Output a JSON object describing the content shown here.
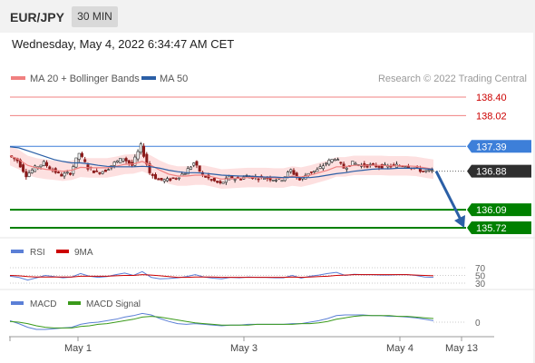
{
  "header": {
    "pair": "EUR/JPY",
    "timeframe": "30 MIN",
    "datetime": "Wednesday, May 4, 2022 6:34:47 AM CET"
  },
  "legend": {
    "ma20": "MA 20 + Bollinger Bands",
    "ma50": "MA 50",
    "copyright": "Research © 2022 Trading Central"
  },
  "colors": {
    "resistance": "#cc0000",
    "pivot": "#3d7fd9",
    "support": "#008000",
    "current": "#2f2f2f",
    "ma20": "#f08080",
    "ma50": "#2b5fa6",
    "bollinger_fill": "#fde0e0",
    "candle_up": "#2f2f2f",
    "candle_down": "#8a1a1a",
    "arrow": "#2b5fa6",
    "rsi": "#5b7fd6",
    "rsi_ma": "#cc0000",
    "macd": "#5b7fd6",
    "macd_signal": "#3a9a1a"
  },
  "chart_data": [
    {
      "type": "candlestick",
      "title": "EUR/JPY",
      "ylim": [
        135.6,
        138.55
      ],
      "levels": [
        {
          "label": "138.40",
          "value": 138.4,
          "kind": "resistance"
        },
        {
          "label": "138.02",
          "value": 138.02,
          "kind": "resistance"
        },
        {
          "label": "137.39",
          "value": 137.39,
          "kind": "pivot"
        },
        {
          "label": "136.88",
          "value": 136.88,
          "kind": "current"
        },
        {
          "label": "136.09",
          "value": 136.09,
          "kind": "support"
        },
        {
          "label": "135.72",
          "value": 135.72,
          "kind": "support"
        }
      ],
      "close_profile": [
        137.2,
        137.1,
        136.8,
        136.95,
        137.05,
        136.9,
        136.8,
        136.85,
        137.25,
        136.95,
        136.85,
        136.9,
        137.05,
        137.15,
        137.0,
        137.4,
        136.85,
        136.7,
        136.7,
        136.75,
        136.85,
        137.05,
        136.8,
        136.7,
        136.62,
        136.75,
        136.72,
        136.78,
        136.75,
        136.75,
        136.72,
        136.72,
        136.9,
        136.7,
        136.85,
        136.9,
        137.05,
        137.15,
        136.95,
        137.05,
        137.0,
        137.0,
        136.98,
        136.98,
        137.0,
        137.0,
        136.95,
        136.88,
        136.88
      ],
      "arrow": {
        "from": 136.88,
        "to": 135.72
      },
      "series": [
        {
          "name": "MA 20 + Bollinger Bands",
          "values": [
            137.2,
            137.12,
            137.0,
            136.95,
            136.92,
            136.9,
            136.88,
            136.9,
            136.96,
            136.95,
            136.95,
            136.95,
            136.98,
            137.02,
            137.03,
            137.08,
            137.0,
            136.9,
            136.82,
            136.78,
            136.78,
            136.8,
            136.8,
            136.76,
            136.72,
            136.73,
            136.74,
            136.75,
            136.75,
            136.75,
            136.74,
            136.74,
            136.78,
            136.76,
            136.8,
            136.85,
            136.9,
            136.97,
            136.97,
            137.0,
            137.0,
            137.0,
            137.0,
            136.99,
            136.99,
            136.99,
            136.98,
            136.95,
            136.92
          ]
        },
        {
          "name": "MA 50",
          "values": [
            137.38,
            137.36,
            137.3,
            137.24,
            137.18,
            137.12,
            137.08,
            137.05,
            137.05,
            137.03,
            137.0,
            136.98,
            136.97,
            136.97,
            136.97,
            136.98,
            136.97,
            136.94,
            136.9,
            136.87,
            136.85,
            136.85,
            136.84,
            136.82,
            136.8,
            136.79,
            136.78,
            136.78,
            136.77,
            136.76,
            136.76,
            136.75,
            136.76,
            136.75,
            136.75,
            136.77,
            136.8,
            136.83,
            136.85,
            136.88,
            136.9,
            136.92,
            136.93,
            136.93,
            136.94,
            136.94,
            136.94,
            136.93,
            136.92
          ]
        }
      ],
      "xticks": [
        "May 1",
        "May 3",
        "May 4",
        "May 13"
      ]
    },
    {
      "type": "line",
      "title": "RSI",
      "ylim": [
        20,
        80
      ],
      "yticks": [
        "70",
        "50",
        "30"
      ],
      "series": [
        {
          "name": "RSI",
          "values": [
            48,
            45,
            38,
            44,
            50,
            47,
            44,
            46,
            55,
            48,
            45,
            47,
            52,
            56,
            50,
            60,
            45,
            41,
            42,
            44,
            47,
            52,
            46,
            43,
            41,
            45,
            44,
            46,
            45,
            45,
            44,
            44,
            50,
            43,
            48,
            51,
            55,
            58,
            50,
            53,
            52,
            52,
            51,
            51,
            52,
            52,
            50,
            46,
            45
          ]
        },
        {
          "name": "9MA",
          "values": [
            50,
            49,
            47,
            46,
            46,
            46,
            46,
            46,
            48,
            48,
            48,
            48,
            49,
            50,
            50,
            52,
            51,
            49,
            47,
            45,
            45,
            46,
            46,
            46,
            45,
            45,
            45,
            45,
            45,
            45,
            45,
            45,
            46,
            45,
            46,
            47,
            48,
            50,
            51,
            52,
            52,
            52,
            52,
            52,
            52,
            52,
            51,
            50,
            49
          ]
        }
      ]
    },
    {
      "type": "line",
      "title": "MACD",
      "yticks": [
        "0"
      ],
      "series": [
        {
          "name": "MACD",
          "values": [
            0.02,
            -0.02,
            -0.07,
            -0.1,
            -0.1,
            -0.09,
            -0.08,
            -0.07,
            -0.03,
            -0.01,
            0.0,
            0.02,
            0.04,
            0.07,
            0.09,
            0.12,
            0.1,
            0.05,
            0.01,
            -0.02,
            -0.03,
            -0.02,
            -0.03,
            -0.04,
            -0.05,
            -0.04,
            -0.04,
            -0.03,
            -0.03,
            -0.03,
            -0.03,
            -0.03,
            -0.02,
            -0.02,
            0.0,
            0.02,
            0.05,
            0.09,
            0.1,
            0.1,
            0.1,
            0.09,
            0.09,
            0.08,
            0.08,
            0.07,
            0.06,
            0.04,
            0.02
          ]
        },
        {
          "name": "MACD Signal",
          "values": [
            0.01,
            0.0,
            -0.02,
            -0.05,
            -0.07,
            -0.08,
            -0.08,
            -0.08,
            -0.06,
            -0.05,
            -0.03,
            -0.02,
            0.0,
            0.02,
            0.04,
            0.07,
            0.08,
            0.07,
            0.05,
            0.03,
            0.01,
            -0.01,
            -0.02,
            -0.03,
            -0.04,
            -0.04,
            -0.04,
            -0.04,
            -0.03,
            -0.03,
            -0.03,
            -0.03,
            -0.03,
            -0.02,
            -0.02,
            -0.01,
            0.01,
            0.04,
            0.06,
            0.08,
            0.09,
            0.09,
            0.09,
            0.09,
            0.08,
            0.08,
            0.07,
            0.06,
            0.05
          ]
        }
      ]
    }
  ]
}
